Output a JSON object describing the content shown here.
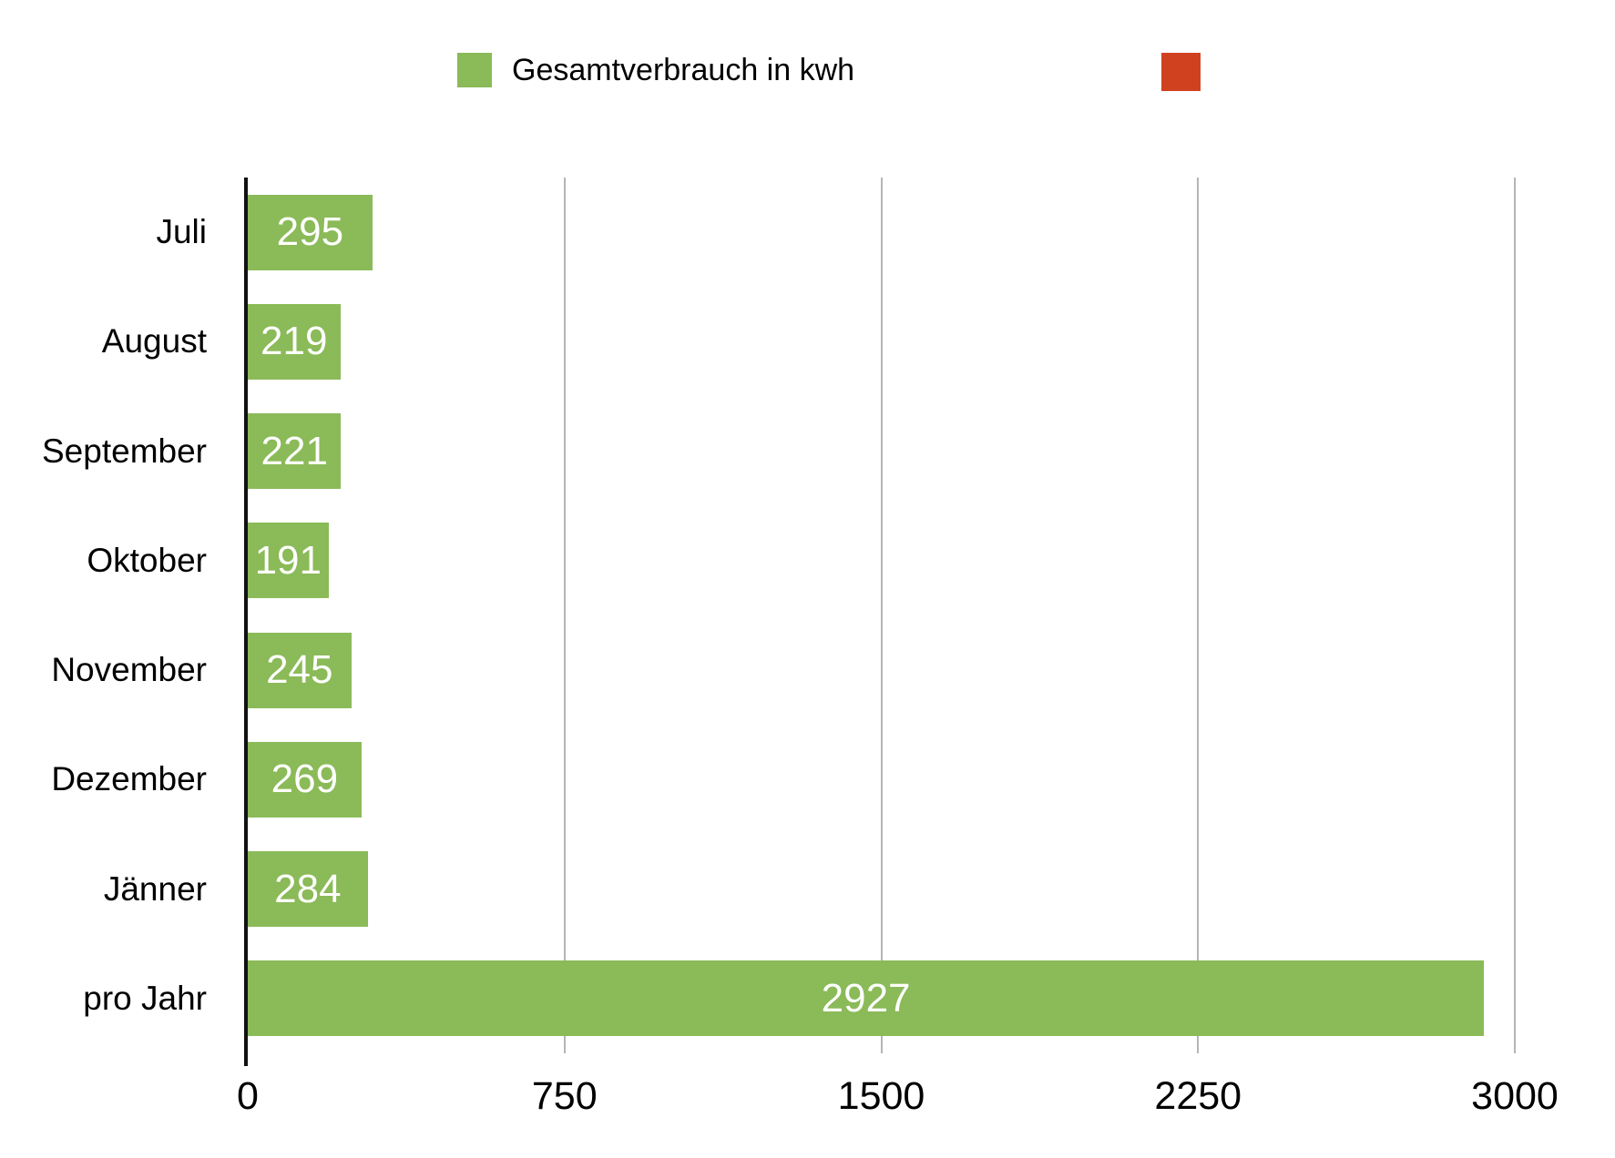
{
  "page": {
    "background": "#ffffff"
  },
  "legend": {
    "position": "top",
    "items": [
      {
        "label": "Gesamtverbrauch in kwh",
        "color": "#8bba58"
      },
      {
        "label": "",
        "color": "#d0421f"
      }
    ]
  },
  "chart_data": {
    "type": "bar",
    "orientation": "horizontal",
    "title": "",
    "xlabel": "",
    "ylabel": "",
    "categories": [
      "Juli",
      "August",
      "September",
      "Oktober",
      "November",
      "Dezember",
      "Jänner",
      "pro Jahr"
    ],
    "series": [
      {
        "name": "Gesamtverbrauch in kwh",
        "color": "#8bba58",
        "values": [
          295,
          219,
          221,
          191,
          245,
          269,
          284,
          2927
        ]
      }
    ],
    "value_labels": [
      "295",
      "219",
      "221",
      "191",
      "245",
      "269",
      "284",
      "2927"
    ],
    "value_label_color": "#ffffff",
    "value_label_position": "center-inside",
    "xlim": [
      0,
      3000
    ],
    "x_ticks": [
      "0",
      "750",
      "1500",
      "2250",
      "3000"
    ],
    "x_tick_values": [
      0,
      750,
      1500,
      2250,
      3000
    ],
    "grid": "vertical",
    "gridline_color": "#b5b5b5",
    "axis_color": "#111111",
    "legend_position": "top"
  }
}
